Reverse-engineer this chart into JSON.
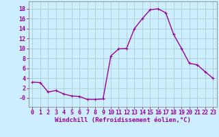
{
  "x": [
    0,
    1,
    2,
    3,
    4,
    5,
    6,
    7,
    8,
    9,
    10,
    11,
    12,
    13,
    14,
    15,
    16,
    17,
    18,
    19,
    20,
    21,
    22,
    23
  ],
  "y": [
    3.2,
    3.1,
    1.2,
    1.5,
    0.8,
    0.4,
    0.3,
    -0.3,
    -0.3,
    -0.2,
    8.5,
    9.9,
    10.0,
    14.0,
    16.0,
    17.8,
    18.0,
    17.2,
    12.8,
    10.0,
    7.0,
    6.7,
    5.3,
    4.0
  ],
  "line_color": "#990099",
  "marker": "P",
  "marker_size": 3,
  "line_width": 1.0,
  "bg_color": "#cceeff",
  "grid_color": "#aacccc",
  "xlabel": "Windchill (Refroidissement éolien,°C)",
  "xlabel_color": "#990099",
  "xlabel_fontsize": 6.5,
  "tick_color": "#990099",
  "tick_fontsize": 6.0,
  "yticks": [
    0,
    2,
    4,
    6,
    8,
    10,
    12,
    14,
    16,
    18
  ],
  "ylim": [
    -1.8,
    19.5
  ],
  "xlim": [
    -0.5,
    23.5
  ]
}
